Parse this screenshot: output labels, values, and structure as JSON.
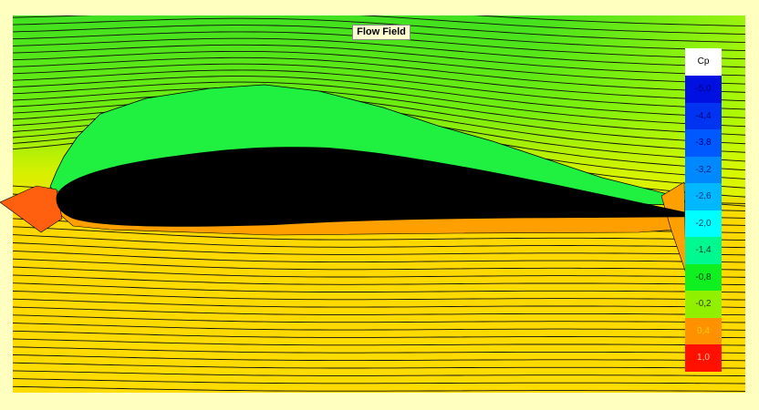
{
  "title": "Flow Field",
  "legend": {
    "title": "Cp",
    "entries": [
      {
        "label": "-5,0",
        "color": "#0010e0",
        "text": "#000080"
      },
      {
        "label": "-4,4",
        "color": "#0034f0",
        "text": "#000080"
      },
      {
        "label": "-3,8",
        "color": "#0058ff",
        "text": "#000080"
      },
      {
        "label": "-3,2",
        "color": "#0088ff",
        "text": "#002080"
      },
      {
        "label": "-2,6",
        "color": "#00b8ff",
        "text": "#003080"
      },
      {
        "label": "-2,0",
        "color": "#00ffff",
        "text": "#004060"
      },
      {
        "label": "-1,4",
        "color": "#00f890",
        "text": "#004030"
      },
      {
        "label": "-0,8",
        "color": "#10f020",
        "text": "#004000"
      },
      {
        "label": "-0,2",
        "color": "#90f000",
        "text": "#304000"
      },
      {
        "label": "0,4",
        "color": "#ff9000",
        "text": "#ffd000"
      },
      {
        "label": "1,0",
        "color": "#ff1000",
        "text": "#ffc0a0"
      }
    ]
  },
  "colors": {
    "background": "#ffffc0",
    "airfoil": "#000000",
    "suction_envelope": "#20f040",
    "pressure_envelope": "#ffa000",
    "stagnation": "#ff6010"
  }
}
